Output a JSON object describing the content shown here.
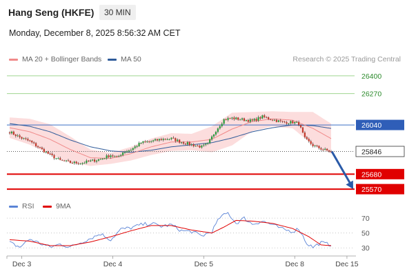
{
  "header": {
    "title": "Hang Seng (HKFE)",
    "timeframe": "30 MIN",
    "datetime": "Monday, December 8, 2025 8:56:32 AM CET"
  },
  "legend": {
    "main": [
      {
        "label": "MA 20 + Bollinger Bands",
        "color": "#f08a8a"
      },
      {
        "label": "MA 50",
        "color": "#2f5b9a"
      }
    ],
    "rsi": [
      {
        "label": "RSI",
        "color": "#5b84d6"
      },
      {
        "label": "9MA",
        "color": "#e00000"
      }
    ],
    "credit": "Research © 2025 Trading Central"
  },
  "colors": {
    "up": "#2b9b3c",
    "down": "#c0392b",
    "resistance_line": "#9fd58f",
    "pivot_line": "#3a6fc4",
    "support_line": "#e00000",
    "arrow": "#2a5aa8",
    "bollinger_fill": "#fbd5d5"
  },
  "chart_data": [
    {
      "type": "candlestick",
      "title": "Hang Seng (HKFE)",
      "timeframe": "30 MIN",
      "ylim": [
        25520,
        26460
      ],
      "x_ticks": [
        "Dec 3",
        "Dec 4",
        "Dec 5",
        "Dec 8",
        "Dec 15"
      ],
      "levels": [
        {
          "value": 26400,
          "label": "26400",
          "role": "resistance"
        },
        {
          "value": 26270,
          "label": "26270",
          "role": "resistance"
        },
        {
          "value": 26040,
          "label": "26040",
          "role": "pivot"
        },
        {
          "value": 25846,
          "label": "25846",
          "role": "last"
        },
        {
          "value": 25680,
          "label": "25680",
          "role": "support"
        },
        {
          "value": 25570,
          "label": "25570",
          "role": "support"
        }
      ],
      "close_anchors": [
        [
          0,
          25990
        ],
        [
          5,
          25950
        ],
        [
          10,
          25920
        ],
        [
          15,
          25870
        ],
        [
          20,
          25820
        ],
        [
          25,
          25780
        ],
        [
          30,
          25765
        ],
        [
          35,
          25760
        ],
        [
          40,
          25775
        ],
        [
          45,
          25790
        ],
        [
          50,
          25820
        ],
        [
          53,
          25800
        ],
        [
          56,
          25840
        ],
        [
          60,
          25860
        ],
        [
          65,
          25910
        ],
        [
          70,
          25920
        ],
        [
          75,
          25935
        ],
        [
          80,
          25940
        ],
        [
          85,
          25915
        ],
        [
          90,
          25895
        ],
        [
          95,
          25880
        ],
        [
          98,
          25900
        ],
        [
          102,
          26000
        ],
        [
          106,
          26080
        ],
        [
          110,
          26090
        ],
        [
          115,
          26080
        ],
        [
          120,
          26070
        ],
        [
          125,
          26100
        ],
        [
          130,
          26080
        ],
        [
          135,
          26060
        ],
        [
          140,
          26060
        ],
        [
          143,
          26050
        ],
        [
          146,
          25940
        ],
        [
          150,
          25890
        ],
        [
          155,
          25860
        ],
        [
          159,
          25846
        ]
      ],
      "ma20_anchors": [
        [
          0,
          26020
        ],
        [
          10,
          25990
        ],
        [
          20,
          25935
        ],
        [
          30,
          25860
        ],
        [
          40,
          25800
        ],
        [
          50,
          25795
        ],
        [
          60,
          25830
        ],
        [
          70,
          25880
        ],
        [
          80,
          25915
        ],
        [
          90,
          25915
        ],
        [
          100,
          25935
        ],
        [
          110,
          26010
        ],
        [
          120,
          26065
        ],
        [
          130,
          26085
        ],
        [
          140,
          26075
        ],
        [
          150,
          26015
        ],
        [
          159,
          25940
        ]
      ],
      "ma50_anchors": [
        [
          0,
          26050
        ],
        [
          10,
          26030
        ],
        [
          20,
          25990
        ],
        [
          30,
          25930
        ],
        [
          40,
          25880
        ],
        [
          50,
          25850
        ],
        [
          60,
          25840
        ],
        [
          70,
          25855
        ],
        [
          80,
          25880
        ],
        [
          90,
          25895
        ],
        [
          100,
          25910
        ],
        [
          110,
          25945
        ],
        [
          120,
          25990
        ],
        [
          130,
          26020
        ],
        [
          140,
          26040
        ],
        [
          150,
          26035
        ],
        [
          159,
          26015
        ]
      ],
      "band_width_anchors": [
        [
          0,
          75
        ],
        [
          10,
          95
        ],
        [
          20,
          110
        ],
        [
          30,
          95
        ],
        [
          40,
          60
        ],
        [
          50,
          40
        ],
        [
          60,
          50
        ],
        [
          70,
          60
        ],
        [
          80,
          65
        ],
        [
          90,
          60
        ],
        [
          100,
          95
        ],
        [
          110,
          120
        ],
        [
          120,
          70
        ],
        [
          130,
          55
        ],
        [
          140,
          60
        ],
        [
          150,
          120
        ],
        [
          159,
          110
        ]
      ],
      "forecast": {
        "from": 25846,
        "to": 25570
      }
    },
    {
      "type": "line",
      "title": "",
      "ylim": [
        20,
        85
      ],
      "y_ticks": [
        70,
        50,
        30
      ],
      "rsi_anchors": [
        [
          0,
          37
        ],
        [
          5,
          31
        ],
        [
          10,
          42
        ],
        [
          15,
          36
        ],
        [
          20,
          31
        ],
        [
          25,
          35
        ],
        [
          30,
          31
        ],
        [
          35,
          37
        ],
        [
          40,
          43
        ],
        [
          45,
          49
        ],
        [
          50,
          41
        ],
        [
          55,
          55
        ],
        [
          60,
          57
        ],
        [
          65,
          61
        ],
        [
          70,
          63
        ],
        [
          75,
          59
        ],
        [
          80,
          61
        ],
        [
          85,
          53
        ],
        [
          90,
          52
        ],
        [
          95,
          46
        ],
        [
          100,
          52
        ],
        [
          104,
          71
        ],
        [
          108,
          77
        ],
        [
          112,
          63
        ],
        [
          116,
          70
        ],
        [
          120,
          62
        ],
        [
          125,
          66
        ],
        [
          130,
          61
        ],
        [
          135,
          55
        ],
        [
          140,
          52
        ],
        [
          143,
          56
        ],
        [
          147,
          36
        ],
        [
          150,
          31
        ],
        [
          154,
          37
        ],
        [
          159,
          34
        ]
      ],
      "ma9_anchors": [
        [
          0,
          41
        ],
        [
          10,
          39
        ],
        [
          20,
          33
        ],
        [
          30,
          33
        ],
        [
          40,
          38
        ],
        [
          50,
          45
        ],
        [
          60,
          53
        ],
        [
          70,
          60
        ],
        [
          80,
          60
        ],
        [
          90,
          54
        ],
        [
          100,
          50
        ],
        [
          106,
          58
        ],
        [
          112,
          67
        ],
        [
          120,
          66
        ],
        [
          130,
          63
        ],
        [
          140,
          56
        ],
        [
          148,
          45
        ],
        [
          154,
          34
        ],
        [
          159,
          33
        ]
      ]
    }
  ]
}
